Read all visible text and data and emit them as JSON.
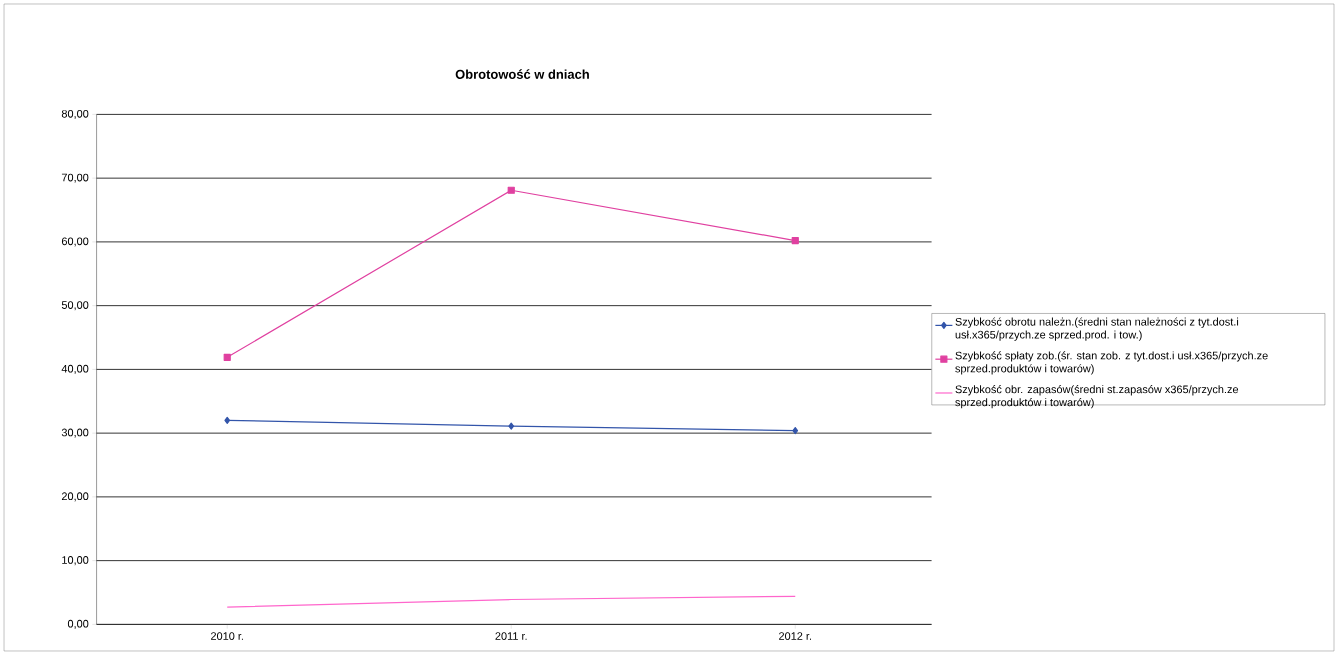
{
  "chart_data": {
    "type": "line",
    "title": "Obrotowość w dniach",
    "categories": [
      "2010 r.",
      "2011 r.",
      "2012 r."
    ],
    "series": [
      {
        "name": "Szybkość obrotu należn.(średni stan należności z tyt.dost.i usł.x365/przych.ze sprzed.prod. i tow.)",
        "color": "#3355aa",
        "marker": "diamond",
        "values": [
          32.0,
          31.1,
          30.4
        ]
      },
      {
        "name": "Szybkość spłaty zob.(śr. stan zob. z tyt.dost.i usł.x365/przych.ze sprzed.produktów i towarów)",
        "color": "#e040a0",
        "marker": "square",
        "values": [
          41.9,
          68.1,
          60.2
        ]
      },
      {
        "name": "Szybkość obr. zapasów(średni st.zapasów x365/przych.ze sprzed.produktów i towarów)",
        "color": "#ff66cc",
        "marker": "none",
        "values": [
          2.7,
          3.9,
          4.4
        ]
      }
    ],
    "ylim": [
      0,
      80
    ],
    "yticks": [
      {
        "value": 0,
        "label": "0,00"
      },
      {
        "value": 10,
        "label": "10,00"
      },
      {
        "value": 20,
        "label": "20,00"
      },
      {
        "value": 30,
        "label": "30,00"
      },
      {
        "value": 40,
        "label": "40,00"
      },
      {
        "value": 50,
        "label": "50,00"
      },
      {
        "value": 60,
        "label": "60,00"
      },
      {
        "value": 70,
        "label": "70,00"
      },
      {
        "value": 80,
        "label": "80,00"
      }
    ],
    "grid": "y",
    "legend": "right",
    "line_style": "solid"
  }
}
